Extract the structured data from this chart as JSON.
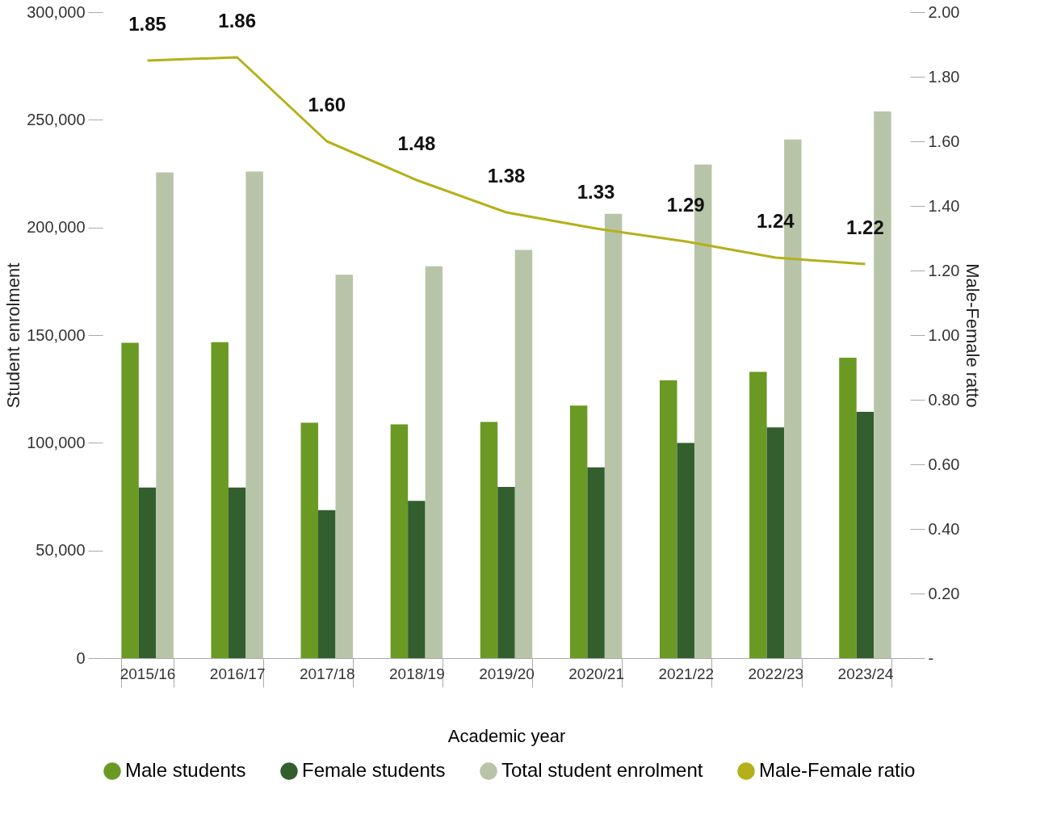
{
  "chart_data": {
    "type": "bar",
    "xlabel": "Academic year",
    "ylabel": "Student enrolment",
    "y2label": "Male-Female ratto",
    "categories": [
      "2015/16",
      "2016/17",
      "2017/18",
      "2018/19",
      "2019/20",
      "2020/21",
      "2021/22",
      "2022/23",
      "2023/24"
    ],
    "series": [
      {
        "name": "Male students",
        "color": "#6a9a23",
        "values": [
          146400,
          146700,
          109300,
          108600,
          109700,
          117300,
          129000,
          132900,
          139500
        ]
      },
      {
        "name": "Female students",
        "color": "#335e2e",
        "values": [
          79200,
          79200,
          68700,
          73000,
          79500,
          88600,
          99900,
          107200,
          114400
        ]
      },
      {
        "name": "Total student enrolment",
        "color": "#b8c4a8",
        "values": [
          225600,
          225900,
          178000,
          182000,
          189600,
          206300,
          229200,
          240800,
          253900
        ]
      },
      {
        "name": "Male-Female ratio",
        "color": "#b5b019",
        "type": "line",
        "axis": "y2",
        "values": [
          1.85,
          1.86,
          1.6,
          1.48,
          1.38,
          1.33,
          1.29,
          1.24,
          1.22
        ],
        "value_labels": [
          "1.85",
          "1.86",
          "1.60",
          "1.48",
          "1.38",
          "1.33",
          "1.29",
          "1.24",
          "1.22"
        ]
      }
    ],
    "ylim": [
      0,
      300000
    ],
    "yticks": [
      {
        "value": 0,
        "label": "0"
      },
      {
        "value": 50000,
        "label": "50,000"
      },
      {
        "value": 100000,
        "label": "100,000"
      },
      {
        "value": 150000,
        "label": "150,000"
      },
      {
        "value": 200000,
        "label": "200,000"
      },
      {
        "value": 250000,
        "label": "250,000"
      },
      {
        "value": 300000,
        "label": "300,000"
      }
    ],
    "y2lim": [
      0,
      2.0
    ],
    "y2ticks": [
      {
        "value": 0,
        "label": "-"
      },
      {
        "value": 0.2,
        "label": "0.20"
      },
      {
        "value": 0.4,
        "label": "0.40"
      },
      {
        "value": 0.6,
        "label": "0.60"
      },
      {
        "value": 0.8,
        "label": "0.80"
      },
      {
        "value": 1.0,
        "label": "1.00"
      },
      {
        "value": 1.2,
        "label": "1.20"
      },
      {
        "value": 1.4,
        "label": "1.40"
      },
      {
        "value": 1.6,
        "label": "1.60"
      },
      {
        "value": 1.8,
        "label": "1.80"
      },
      {
        "value": 2.0,
        "label": "2.00"
      }
    ],
    "legend": "bottom",
    "grid": false
  }
}
